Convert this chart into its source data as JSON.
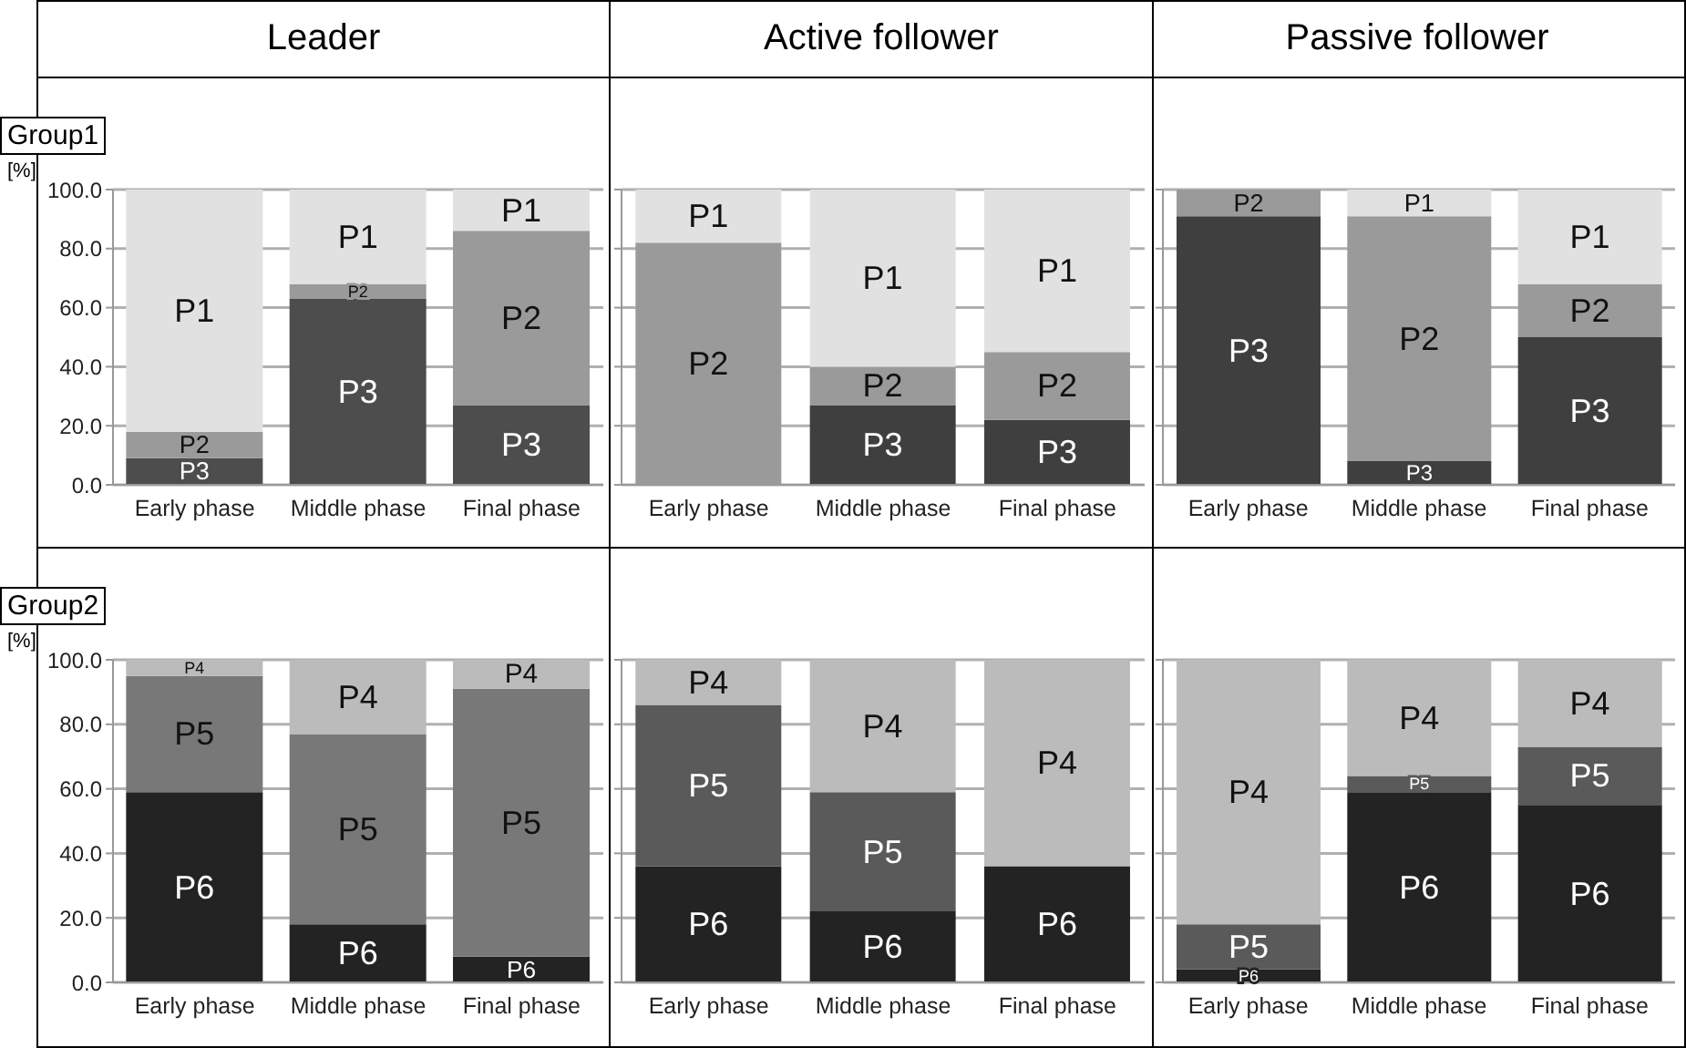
{
  "chart_data": [
    {
      "type": "bar",
      "title": "Leader",
      "subtitle": "Group1",
      "ylabel": "[%]",
      "stacked": true,
      "categories": [
        "Early phase",
        "Middle phase",
        "Final phase"
      ],
      "series": [
        {
          "name": "P3",
          "color": "#4d4d4d",
          "values": [
            9,
            63,
            27
          ]
        },
        {
          "name": "P2",
          "color": "#9a9a9a",
          "values": [
            9,
            5,
            59
          ]
        },
        {
          "name": "P1",
          "color": "#e1e1e1",
          "values": [
            82,
            32,
            14
          ]
        }
      ],
      "ylim": [
        0,
        100
      ],
      "yticks": [
        {
          "value": 0,
          "label": "0.0"
        },
        {
          "value": 20,
          "label": "20.0"
        },
        {
          "value": 40,
          "label": "40.0"
        },
        {
          "value": 60,
          "label": "60.0"
        },
        {
          "value": 80,
          "label": "80.0"
        },
        {
          "value": 100,
          "label": "100.0"
        }
      ],
      "grid": "y"
    },
    {
      "type": "bar",
      "title": "Active follower",
      "stacked": true,
      "categories": [
        "Early phase",
        "Middle phase",
        "Final phase"
      ],
      "series": [
        {
          "name": "P3",
          "color": "#3f3f3f",
          "values": [
            0,
            27,
            22
          ]
        },
        {
          "name": "P2",
          "color": "#9a9a9a",
          "values": [
            82,
            13,
            23
          ]
        },
        {
          "name": "P1",
          "color": "#e1e1e1",
          "values": [
            18,
            60,
            55
          ]
        }
      ],
      "ylim": [
        0,
        100
      ],
      "yticks": [
        0,
        20,
        40,
        60,
        80,
        100
      ],
      "grid": "y",
      "tick_labels": "x"
    },
    {
      "type": "bar",
      "title": "Passive follower",
      "stacked": true,
      "categories": [
        "Early phase",
        "Middle phase",
        "Final phase"
      ],
      "series": [
        {
          "name": "P3",
          "color": "#3f3f3f",
          "values": [
            91,
            8,
            50
          ]
        },
        {
          "name": "P2",
          "color": "#9a9a9a",
          "values": [
            9,
            83,
            18
          ]
        },
        {
          "name": "P1",
          "color": "#e1e1e1",
          "values": [
            0,
            9,
            32
          ]
        }
      ],
      "ylim": [
        0,
        100
      ],
      "yticks": [
        0,
        20,
        40,
        60,
        80,
        100
      ],
      "grid": "y",
      "tick_labels": "x"
    },
    {
      "type": "bar",
      "subtitle": "Group2",
      "ylabel": "[%]",
      "stacked": true,
      "categories": [
        "Early phase",
        "Middle phase",
        "Final phase"
      ],
      "series": [
        {
          "name": "P6",
          "color": "#232323",
          "values": [
            59,
            18,
            8
          ]
        },
        {
          "name": "P5",
          "color": "#787878",
          "values": [
            36,
            59,
            83
          ]
        },
        {
          "name": "P4",
          "color": "#bbbbbb",
          "values": [
            5,
            23,
            9
          ]
        }
      ],
      "ylim": [
        0,
        100
      ],
      "yticks": [
        {
          "value": 0,
          "label": "0.0"
        },
        {
          "value": 20,
          "label": "20.0"
        },
        {
          "value": 40,
          "label": "40.0"
        },
        {
          "value": 60,
          "label": "60.0"
        },
        {
          "value": 80,
          "label": "80.0"
        },
        {
          "value": 100,
          "label": "100.0"
        }
      ],
      "grid": "y"
    },
    {
      "type": "bar",
      "stacked": true,
      "categories": [
        "Early phase",
        "Middle phase",
        "Final phase"
      ],
      "series": [
        {
          "name": "P6",
          "color": "#232323",
          "values": [
            36,
            22,
            36
          ]
        },
        {
          "name": "P5",
          "color": "#5a5a5a",
          "values": [
            50,
            37,
            0
          ]
        },
        {
          "name": "P4",
          "color": "#bbbbbb",
          "values": [
            14,
            41,
            64
          ]
        }
      ],
      "ylim": [
        0,
        100
      ],
      "yticks": [
        0,
        20,
        40,
        60,
        80,
        100
      ],
      "grid": "y",
      "tick_labels": "x"
    },
    {
      "type": "bar",
      "stacked": true,
      "categories": [
        "Early phase",
        "Middle phase",
        "Final phase"
      ],
      "series": [
        {
          "name": "P6",
          "color": "#232323",
          "values": [
            4,
            59,
            55
          ]
        },
        {
          "name": "P5",
          "color": "#5a5a5a",
          "values": [
            14,
            5,
            18
          ]
        },
        {
          "name": "P4",
          "color": "#bbbbbb",
          "values": [
            82,
            36,
            27
          ]
        }
      ],
      "ylim": [
        0,
        100
      ],
      "yticks": [
        0,
        20,
        40,
        60,
        80,
        100
      ],
      "grid": "y",
      "tick_labels": "x"
    }
  ]
}
